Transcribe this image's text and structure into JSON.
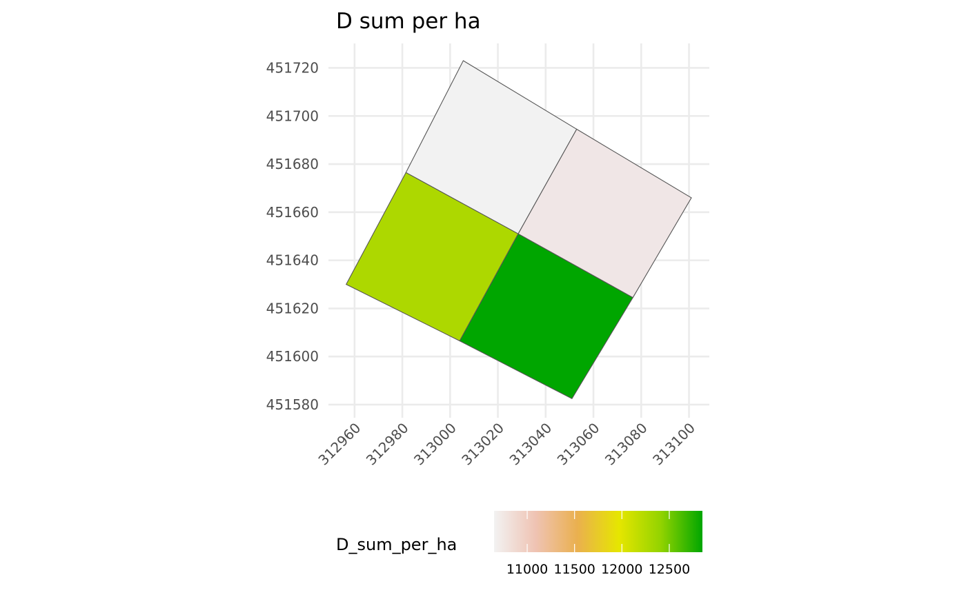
{
  "chart_data": {
    "type": "heatmap",
    "title": "D sum per ha",
    "xlabel": "",
    "ylabel": "",
    "x_ticks": [
      312960,
      312980,
      313000,
      313020,
      313040,
      313060,
      313080,
      313100
    ],
    "y_ticks": [
      451580,
      451600,
      451620,
      451640,
      451660,
      451680,
      451700,
      451720
    ],
    "xlim": [
      312956,
      313101
    ],
    "ylim": [
      451582,
      451723
    ],
    "grid": true,
    "legend": {
      "title": "D_sum_per_ha",
      "position": "bottom",
      "ticks": [
        11000,
        11500,
        12000,
        12500
      ],
      "range": [
        10650,
        12850
      ],
      "colors": [
        "#f2f2f2",
        "#efc3b3",
        "#eab04f",
        "#e6e600",
        "#93d300",
        "#00a600"
      ]
    },
    "polygons": [
      {
        "name": "top",
        "value": 10650,
        "color": "#f2f2f2",
        "coords": [
          [
            313005.5,
            451723
          ],
          [
            313053,
            451694.5
          ],
          [
            313028.5,
            451651
          ],
          [
            312981.5,
            451676.5
          ]
        ]
      },
      {
        "name": "right",
        "value": 10720,
        "color": "#f0e6e6",
        "coords": [
          [
            313053,
            451694.5
          ],
          [
            313101,
            451666
          ],
          [
            313076.5,
            451624.5
          ],
          [
            313028.5,
            451651
          ]
        ]
      },
      {
        "name": "left",
        "value": 12200,
        "color": "#add800",
        "coords": [
          [
            312981.5,
            451676.5
          ],
          [
            313028.5,
            451651
          ],
          [
            313004,
            451606.5
          ],
          [
            312956.5,
            451630
          ]
        ]
      },
      {
        "name": "bottom",
        "value": 12800,
        "color": "#00a600",
        "coords": [
          [
            313028.5,
            451651
          ],
          [
            313076.5,
            451624.5
          ],
          [
            313051,
            451582.5
          ],
          [
            313004,
            451606.5
          ]
        ]
      }
    ]
  }
}
